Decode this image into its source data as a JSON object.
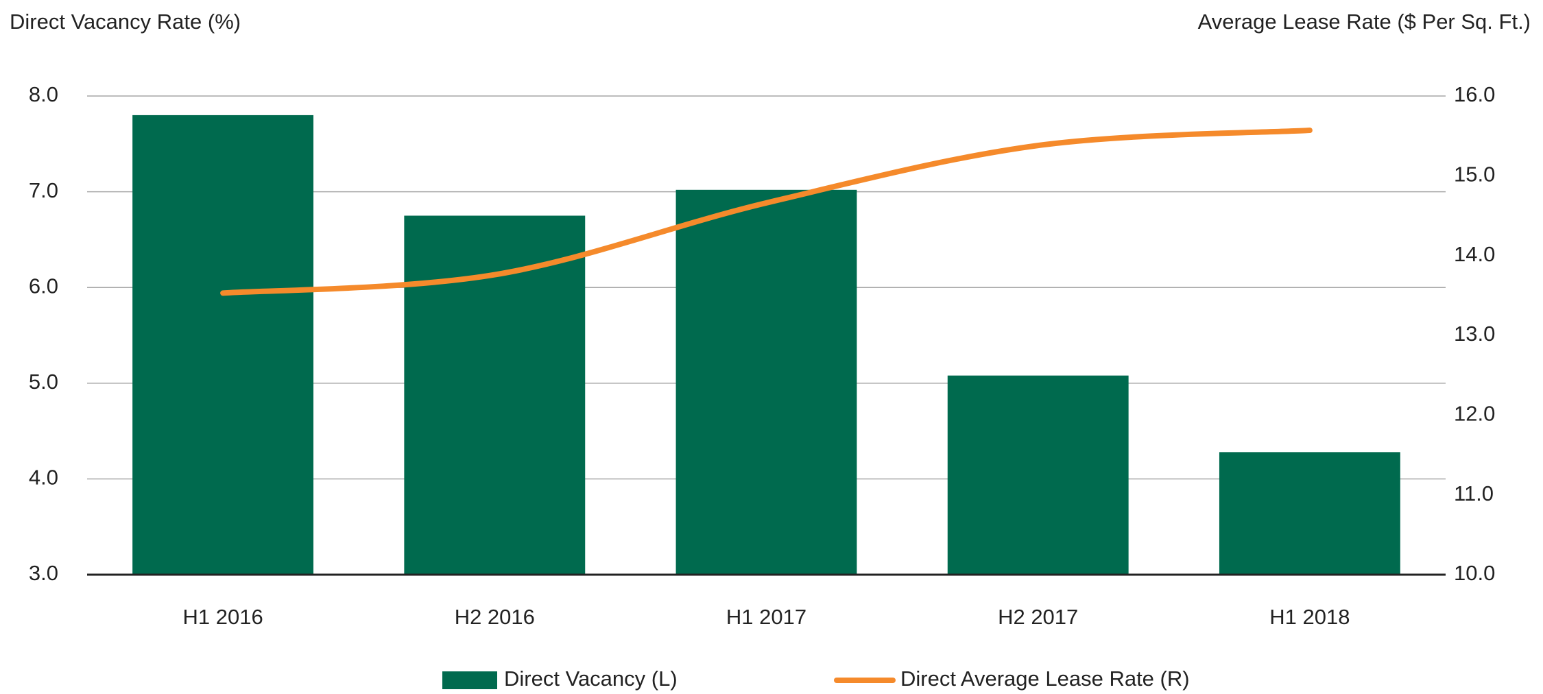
{
  "chart_data": {
    "type": "bar",
    "y_label": "Direct Vacancy Rate (%)",
    "y2_label": "Average Lease Rate ($ Per Sq. Ft.)",
    "categories": [
      "H1 2016",
      "H2 2016",
      "H1 2017",
      "H2 2017",
      "H1 2018"
    ],
    "series": [
      {
        "name": "Direct Vacancy (L)",
        "type": "bar",
        "color": "#006a4e",
        "values": [
          7.8,
          6.75,
          7.02,
          5.08,
          4.28
        ]
      },
      {
        "name": "Direct Average Lease Rate (R)",
        "type": "line",
        "axis": "y2",
        "color": "#f58a2b",
        "values": [
          13.53,
          13.76,
          14.66,
          15.38,
          15.57
        ]
      }
    ],
    "ylim": [
      3,
      8
    ],
    "yticks": [
      {
        "value": 3,
        "label": "3.0"
      },
      {
        "value": 4,
        "label": "4.0"
      },
      {
        "value": 5,
        "label": "5.0"
      },
      {
        "value": 6,
        "label": "6.0"
      },
      {
        "value": 7,
        "label": "7.0"
      },
      {
        "value": 8,
        "label": "8.0"
      }
    ],
    "y2lim": [
      10,
      16
    ],
    "y2ticks": [
      {
        "value": 10,
        "label": "10.0"
      },
      {
        "value": 11,
        "label": "11.0"
      },
      {
        "value": 12,
        "label": "12.0"
      },
      {
        "value": 13,
        "label": "13.0"
      },
      {
        "value": 14,
        "label": "14.0"
      },
      {
        "value": 15,
        "label": "15.0"
      },
      {
        "value": 16,
        "label": "16.0"
      }
    ],
    "grid": true,
    "legend": "bottom"
  }
}
